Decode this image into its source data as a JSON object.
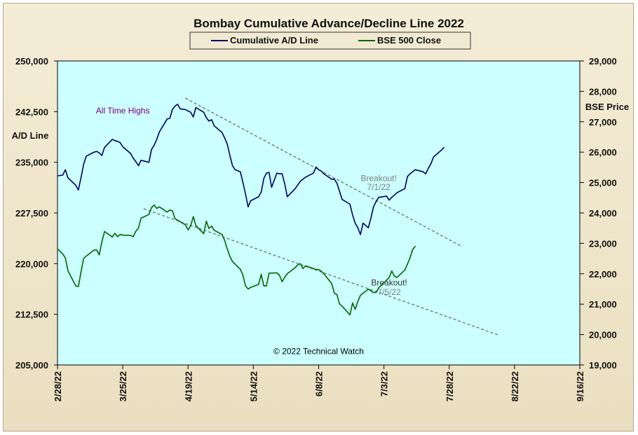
{
  "chart_data": {
    "type": "line",
    "title": "Bombay Cumulative Advance/Decline Line 2022",
    "ylabel_left": "A/D Line",
    "ylabel_right": "BSE Price",
    "ylim_left": [
      205000,
      250000
    ],
    "ylim_right": [
      19000,
      29000
    ],
    "left_ticks": [
      "250,000",
      "242,500",
      "235,000",
      "227,500",
      "220,000",
      "212,500",
      "205,000"
    ],
    "right_ticks": [
      "29,000",
      "28,000",
      "27,000",
      "26,000",
      "25,000",
      "24,000",
      "23,000",
      "22,000",
      "21,000",
      "20,000",
      "19,000"
    ],
    "x_ticks": [
      "2/28/22",
      "3/25/22",
      "4/19/22",
      "5/14/22",
      "6/8/22",
      "7/3/22",
      "7/28/22",
      "8/22/22",
      "9/16/22"
    ],
    "xlim": [
      "2022-02-28",
      "2022-09-16"
    ],
    "grid": false,
    "legend_position": "top",
    "background_color": "#ccffff",
    "series": [
      {
        "name": "Cumulative A/D Line",
        "axis": "left",
        "color": "#000066",
        "points": [
          [
            "2022-02-28",
            233000
          ],
          [
            "2022-03-02",
            233100
          ],
          [
            "2022-03-03",
            233900
          ],
          [
            "2022-03-04",
            232700
          ],
          [
            "2022-03-07",
            231600
          ],
          [
            "2022-03-08",
            230900
          ],
          [
            "2022-03-09",
            232700
          ],
          [
            "2022-03-10",
            234700
          ],
          [
            "2022-03-11",
            235900
          ],
          [
            "2022-03-14",
            236500
          ],
          [
            "2022-03-15",
            236600
          ],
          [
            "2022-03-16",
            236400
          ],
          [
            "2022-03-17",
            236000
          ],
          [
            "2022-03-18",
            237200
          ],
          [
            "2022-03-21",
            238400
          ],
          [
            "2022-03-22",
            238200
          ],
          [
            "2022-03-23",
            238100
          ],
          [
            "2022-03-24",
            237900
          ],
          [
            "2022-03-25",
            237300
          ],
          [
            "2022-03-28",
            236300
          ],
          [
            "2022-03-29",
            235600
          ],
          [
            "2022-03-30",
            235100
          ],
          [
            "2022-03-31",
            234500
          ],
          [
            "2022-04-01",
            235300
          ],
          [
            "2022-04-04",
            235000
          ],
          [
            "2022-04-05",
            236900
          ],
          [
            "2022-04-06",
            237500
          ],
          [
            "2022-04-07",
            238400
          ],
          [
            "2022-04-08",
            239500
          ],
          [
            "2022-04-11",
            241400
          ],
          [
            "2022-04-12",
            241500
          ],
          [
            "2022-04-13",
            242800
          ],
          [
            "2022-04-14",
            243300
          ],
          [
            "2022-04-15",
            243600
          ],
          [
            "2022-04-16",
            242900
          ],
          [
            "2022-04-18",
            242800
          ],
          [
            "2022-04-19",
            242600
          ],
          [
            "2022-04-20",
            242400
          ],
          [
            "2022-04-21",
            241700
          ],
          [
            "2022-04-22",
            243100
          ],
          [
            "2022-04-25",
            242400
          ],
          [
            "2022-04-26",
            241600
          ],
          [
            "2022-04-27",
            241100
          ],
          [
            "2022-04-28",
            241300
          ],
          [
            "2022-04-29",
            240400
          ],
          [
            "2022-05-02",
            239400
          ],
          [
            "2022-05-03",
            238600
          ],
          [
            "2022-05-04",
            237700
          ],
          [
            "2022-05-05",
            236000
          ],
          [
            "2022-05-06",
            234500
          ],
          [
            "2022-05-07",
            233900
          ],
          [
            "2022-05-09",
            233600
          ],
          [
            "2022-05-10",
            232000
          ],
          [
            "2022-05-11",
            230300
          ],
          [
            "2022-05-12",
            228400
          ],
          [
            "2022-05-13",
            229300
          ],
          [
            "2022-05-16",
            229900
          ],
          [
            "2022-05-17",
            230600
          ],
          [
            "2022-05-18",
            232600
          ],
          [
            "2022-05-19",
            233400
          ],
          [
            "2022-05-20",
            233500
          ],
          [
            "2022-05-21",
            231300
          ],
          [
            "2022-05-23",
            233400
          ],
          [
            "2022-05-24",
            233300
          ],
          [
            "2022-05-25",
            233300
          ],
          [
            "2022-05-26",
            231800
          ],
          [
            "2022-05-27",
            229900
          ],
          [
            "2022-05-30",
            231100
          ],
          [
            "2022-06-01",
            232200
          ],
          [
            "2022-06-03",
            232800
          ],
          [
            "2022-06-06",
            233400
          ],
          [
            "2022-06-07",
            234300
          ],
          [
            "2022-06-08",
            233900
          ],
          [
            "2022-06-09",
            233700
          ],
          [
            "2022-06-10",
            233300
          ],
          [
            "2022-06-13",
            232500
          ],
          [
            "2022-06-14",
            232500
          ],
          [
            "2022-06-15",
            231900
          ],
          [
            "2022-06-16",
            230700
          ],
          [
            "2022-06-17",
            229500
          ],
          [
            "2022-06-20",
            228800
          ],
          [
            "2022-06-21",
            227200
          ],
          [
            "2022-06-22",
            226000
          ],
          [
            "2022-06-23",
            225300
          ],
          [
            "2022-06-24",
            224300
          ],
          [
            "2022-06-25",
            226000
          ],
          [
            "2022-06-27",
            225300
          ],
          [
            "2022-06-28",
            226700
          ],
          [
            "2022-06-29",
            228400
          ],
          [
            "2022-06-30",
            229200
          ],
          [
            "2022-07-01",
            229800
          ],
          [
            "2022-07-04",
            230000
          ],
          [
            "2022-07-05",
            229400
          ],
          [
            "2022-07-06",
            229800
          ],
          [
            "2022-07-08",
            230500
          ],
          [
            "2022-07-11",
            231100
          ],
          [
            "2022-07-12",
            232900
          ],
          [
            "2022-07-13",
            233300
          ],
          [
            "2022-07-14",
            233600
          ],
          [
            "2022-07-15",
            233900
          ],
          [
            "2022-07-18",
            233600
          ],
          [
            "2022-07-19",
            233300
          ],
          [
            "2022-07-20",
            234100
          ],
          [
            "2022-07-21",
            234800
          ],
          [
            "2022-07-22",
            235800
          ],
          [
            "2022-07-25",
            236800
          ],
          [
            "2022-07-26",
            237200
          ]
        ]
      },
      {
        "name": "BSE 500 Close",
        "axis": "right",
        "color": "#006600",
        "points": [
          [
            "2022-02-28",
            22820
          ],
          [
            "2022-03-02",
            22650
          ],
          [
            "2022-03-03",
            22520
          ],
          [
            "2022-03-04",
            22100
          ],
          [
            "2022-03-07",
            21600
          ],
          [
            "2022-03-08",
            21580
          ],
          [
            "2022-03-09",
            22050
          ],
          [
            "2022-03-10",
            22500
          ],
          [
            "2022-03-11",
            22580
          ],
          [
            "2022-03-14",
            22780
          ],
          [
            "2022-03-15",
            22780
          ],
          [
            "2022-03-16",
            22620
          ],
          [
            "2022-03-17",
            23050
          ],
          [
            "2022-03-18",
            23390
          ],
          [
            "2022-03-21",
            23210
          ],
          [
            "2022-03-22",
            23330
          ],
          [
            "2022-03-23",
            23220
          ],
          [
            "2022-03-24",
            23290
          ],
          [
            "2022-03-25",
            23270
          ],
          [
            "2022-03-28",
            23260
          ],
          [
            "2022-03-29",
            23220
          ],
          [
            "2022-03-30",
            23400
          ],
          [
            "2022-03-31",
            23500
          ],
          [
            "2022-04-01",
            23830
          ],
          [
            "2022-04-04",
            23950
          ],
          [
            "2022-04-05",
            24170
          ],
          [
            "2022-04-06",
            24260
          ],
          [
            "2022-04-07",
            24150
          ],
          [
            "2022-04-08",
            24200
          ],
          [
            "2022-04-11",
            24030
          ],
          [
            "2022-04-12",
            24100
          ],
          [
            "2022-04-13",
            24070
          ],
          [
            "2022-04-14",
            23810
          ],
          [
            "2022-04-18",
            23610
          ],
          [
            "2022-04-19",
            23440
          ],
          [
            "2022-04-20",
            23580
          ],
          [
            "2022-04-21",
            23880
          ],
          [
            "2022-04-22",
            23580
          ],
          [
            "2022-04-25",
            23320
          ],
          [
            "2022-04-26",
            23730
          ],
          [
            "2022-04-27",
            23490
          ],
          [
            "2022-04-28",
            23570
          ],
          [
            "2022-04-29",
            23430
          ],
          [
            "2022-05-02",
            23290
          ],
          [
            "2022-05-03",
            23100
          ],
          [
            "2022-05-04",
            22820
          ],
          [
            "2022-05-05",
            22570
          ],
          [
            "2022-05-06",
            22400
          ],
          [
            "2022-05-09",
            22150
          ],
          [
            "2022-05-10",
            21950
          ],
          [
            "2022-05-11",
            21600
          ],
          [
            "2022-05-12",
            21500
          ],
          [
            "2022-05-13",
            21550
          ],
          [
            "2022-05-16",
            21650
          ],
          [
            "2022-05-17",
            21980
          ],
          [
            "2022-05-18",
            21600
          ],
          [
            "2022-05-19",
            21600
          ],
          [
            "2022-05-20",
            22020
          ],
          [
            "2022-05-23",
            22030
          ],
          [
            "2022-05-24",
            21950
          ],
          [
            "2022-05-25",
            21740
          ],
          [
            "2022-05-26",
            21890
          ],
          [
            "2022-05-27",
            22000
          ],
          [
            "2022-05-30",
            22200
          ],
          [
            "2022-05-31",
            22290
          ],
          [
            "2022-06-01",
            22330
          ],
          [
            "2022-06-02",
            22170
          ],
          [
            "2022-06-03",
            22260
          ],
          [
            "2022-06-06",
            22170
          ],
          [
            "2022-06-07",
            22140
          ],
          [
            "2022-06-08",
            22140
          ],
          [
            "2022-06-09",
            22080
          ],
          [
            "2022-06-10",
            22000
          ],
          [
            "2022-06-13",
            21680
          ],
          [
            "2022-06-14",
            21360
          ],
          [
            "2022-06-15",
            21310
          ],
          [
            "2022-06-16",
            21010
          ],
          [
            "2022-06-17",
            20930
          ],
          [
            "2022-06-20",
            20650
          ],
          [
            "2022-06-21",
            21040
          ],
          [
            "2022-06-22",
            20830
          ],
          [
            "2022-06-23",
            21090
          ],
          [
            "2022-06-24",
            21290
          ],
          [
            "2022-06-27",
            21490
          ],
          [
            "2022-06-28",
            21440
          ],
          [
            "2022-06-29",
            21380
          ],
          [
            "2022-06-30",
            21390
          ],
          [
            "2022-07-01",
            21540
          ],
          [
            "2022-07-04",
            21790
          ],
          [
            "2022-07-05",
            21880
          ],
          [
            "2022-07-06",
            22090
          ],
          [
            "2022-07-07",
            21920
          ],
          [
            "2022-07-08",
            21880
          ],
          [
            "2022-07-11",
            22120
          ],
          [
            "2022-07-12",
            22320
          ],
          [
            "2022-07-13",
            22530
          ],
          [
            "2022-07-14",
            22800
          ],
          [
            "2022-07-15",
            22900
          ]
        ]
      }
    ],
    "trendlines": [
      {
        "from": [
          "2022-04-18",
          244500
        ],
        "to": [
          "2022-08-02",
          222500
        ]
      },
      {
        "from": [
          "2022-04-02",
          24140
        ],
        "to": [
          "2022-08-16",
          19980
        ]
      }
    ],
    "annotations": [
      {
        "text": "All Time Highs",
        "at": [
          "2022-03-25",
          242200
        ],
        "axis": "left",
        "color": "#800080"
      },
      {
        "text": "Breakout!",
        "at": [
          "2022-07-01",
          232200
        ],
        "axis": "left",
        "color": "#808080"
      },
      {
        "text": "7/1/22",
        "at": [
          "2022-07-01",
          230900
        ],
        "axis": "left",
        "color": "#808080"
      },
      {
        "text": "Breakout!",
        "at": [
          "2022-07-05",
          21620
        ],
        "axis": "right",
        "color": "#333333"
      },
      {
        "text": "7/5/22",
        "at": [
          "2022-07-05",
          21300
        ],
        "axis": "right",
        "color": "#808080"
      },
      {
        "text": "© 2022 Technical Watch",
        "at": [
          "2022-06-08",
          206600
        ],
        "axis": "left",
        "color": "#000000"
      }
    ]
  }
}
